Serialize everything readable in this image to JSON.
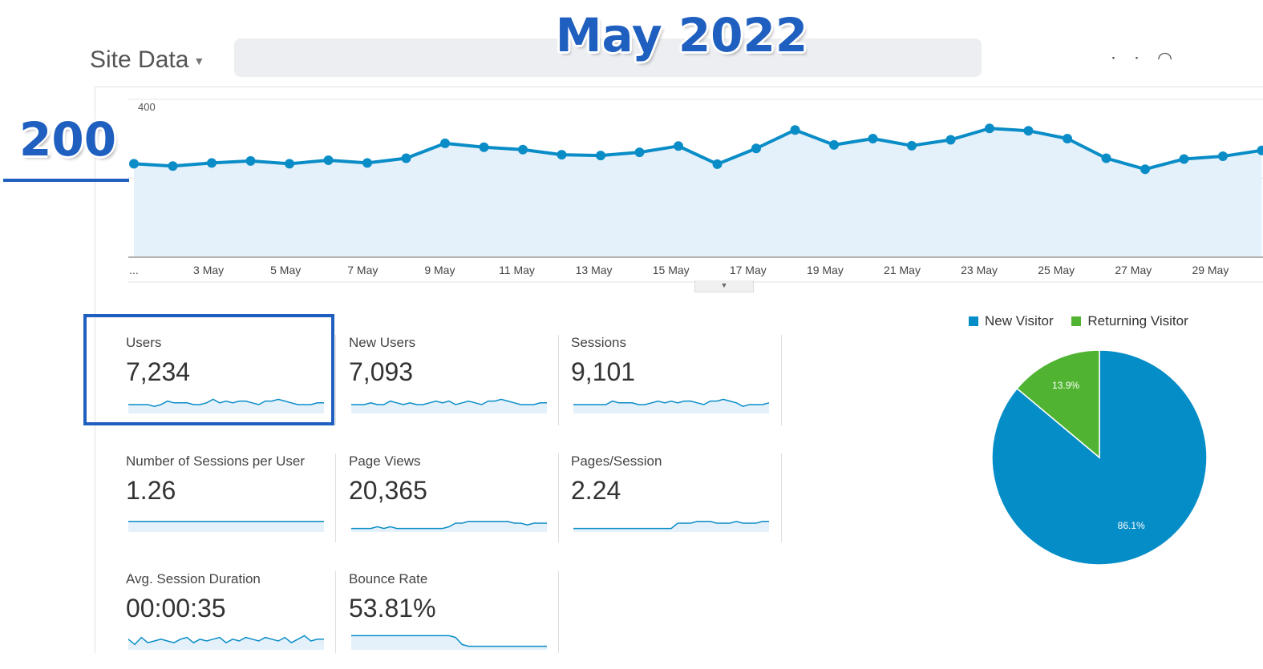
{
  "header": {
    "site_label": "Site Data",
    "overlay_title": "May 2022",
    "overlay_ylabel": "200"
  },
  "chart_data": {
    "type": "line",
    "x": [
      "1 May",
      "2 May",
      "3 May",
      "4 May",
      "5 May",
      "6 May",
      "7 May",
      "8 May",
      "9 May",
      "10 May",
      "11 May",
      "12 May",
      "13 May",
      "14 May",
      "15 May",
      "16 May",
      "17 May",
      "18 May",
      "19 May",
      "20 May",
      "21 May",
      "22 May",
      "23 May",
      "24 May",
      "25 May",
      "26 May",
      "27 May",
      "28 May",
      "29 May",
      "30 May"
    ],
    "tick_labels": [
      "...",
      "3 May",
      "5 May",
      "7 May",
      "9 May",
      "11 May",
      "13 May",
      "15 May",
      "17 May",
      "19 May",
      "21 May",
      "23 May",
      "25 May",
      "27 May",
      "29 May"
    ],
    "series": [
      {
        "values": [
          236,
          230,
          238,
          243,
          236,
          245,
          238,
          250,
          288,
          278,
          272,
          259,
          257,
          265,
          281,
          235,
          275,
          322,
          284,
          300,
          282,
          297,
          326,
          320,
          300,
          250,
          222,
          248,
          255,
          270
        ]
      }
    ],
    "y_ticks": [
      400,
      200
    ],
    "ylim": [
      0,
      400
    ],
    "grid": true,
    "fill": true,
    "color": "#0a8dc7"
  },
  "metrics": [
    {
      "label": "Users",
      "value": "7,234",
      "spark": [
        5,
        5,
        5,
        5,
        4,
        5,
        7,
        6,
        6,
        6,
        5,
        5,
        6,
        8,
        6,
        7,
        6,
        7,
        7,
        6,
        5,
        7,
        7,
        8,
        7,
        6,
        5,
        5,
        5,
        6,
        6
      ]
    },
    {
      "label": "New Users",
      "value": "7,093",
      "spark": [
        5,
        5,
        5,
        6,
        5,
        5,
        7,
        6,
        5,
        6,
        5,
        5,
        6,
        7,
        6,
        7,
        5,
        6,
        7,
        6,
        5,
        7,
        7,
        8,
        7,
        6,
        5,
        5,
        5,
        6,
        6
      ]
    },
    {
      "label": "Sessions",
      "value": "9,101",
      "spark": [
        5,
        5,
        5,
        5,
        5,
        5,
        7,
        6,
        6,
        6,
        5,
        5,
        6,
        7,
        6,
        7,
        6,
        7,
        7,
        6,
        5,
        7,
        7,
        8,
        7,
        6,
        4,
        5,
        5,
        5,
        6
      ]
    },
    {
      "label": "Number of Sessions per User",
      "value": "1.26",
      "spark": [
        6,
        6,
        6,
        6,
        6,
        6,
        6,
        6,
        6,
        6,
        6,
        6,
        6,
        6,
        6,
        6,
        6,
        6,
        6,
        6,
        6,
        6,
        6,
        6,
        6,
        6,
        6,
        6,
        6,
        6,
        6
      ]
    },
    {
      "label": "Page Views",
      "value": "20,365",
      "spark": [
        2,
        2,
        2,
        2,
        3,
        2,
        3,
        2,
        2,
        2,
        2,
        2,
        2,
        2,
        2,
        3,
        5,
        5,
        6,
        6,
        6,
        6,
        6,
        6,
        6,
        5,
        5,
        4,
        5,
        5,
        5
      ]
    },
    {
      "label": "Pages/Session",
      "value": "2.24",
      "spark": [
        2,
        2,
        2,
        2,
        2,
        2,
        2,
        2,
        2,
        2,
        2,
        2,
        2,
        2,
        2,
        2,
        5,
        5,
        5,
        6,
        6,
        6,
        5,
        5,
        5,
        6,
        5,
        5,
        5,
        6,
        6
      ]
    },
    {
      "label": "Avg. Session Duration",
      "value": "00:00:35",
      "spark": [
        6,
        3,
        7,
        4,
        5,
        6,
        5,
        4,
        6,
        7,
        4,
        6,
        5,
        6,
        7,
        4,
        6,
        5,
        7,
        6,
        5,
        7,
        6,
        5,
        7,
        4,
        6,
        8,
        5,
        6,
        6
      ]
    },
    {
      "label": "Bounce Rate",
      "value": "53.81%",
      "spark": [
        8,
        8,
        8,
        8,
        8,
        8,
        8,
        8,
        8,
        8,
        8,
        8,
        8,
        8,
        8,
        8,
        7,
        3,
        2,
        2,
        2,
        2,
        2,
        2,
        2,
        2,
        2,
        2,
        2,
        2,
        2
      ]
    }
  ],
  "pie": {
    "legend": [
      {
        "name": "New Visitor",
        "color": "#058dc7"
      },
      {
        "name": "Returning Visitor",
        "color": "#50b432"
      }
    ],
    "slices": [
      {
        "name": "New Visitor",
        "value": 86.1,
        "label": "86.1%",
        "color": "#058dc7"
      },
      {
        "name": "Returning Visitor",
        "value": 13.9,
        "label": "13.9%",
        "color": "#50b432"
      }
    ]
  }
}
